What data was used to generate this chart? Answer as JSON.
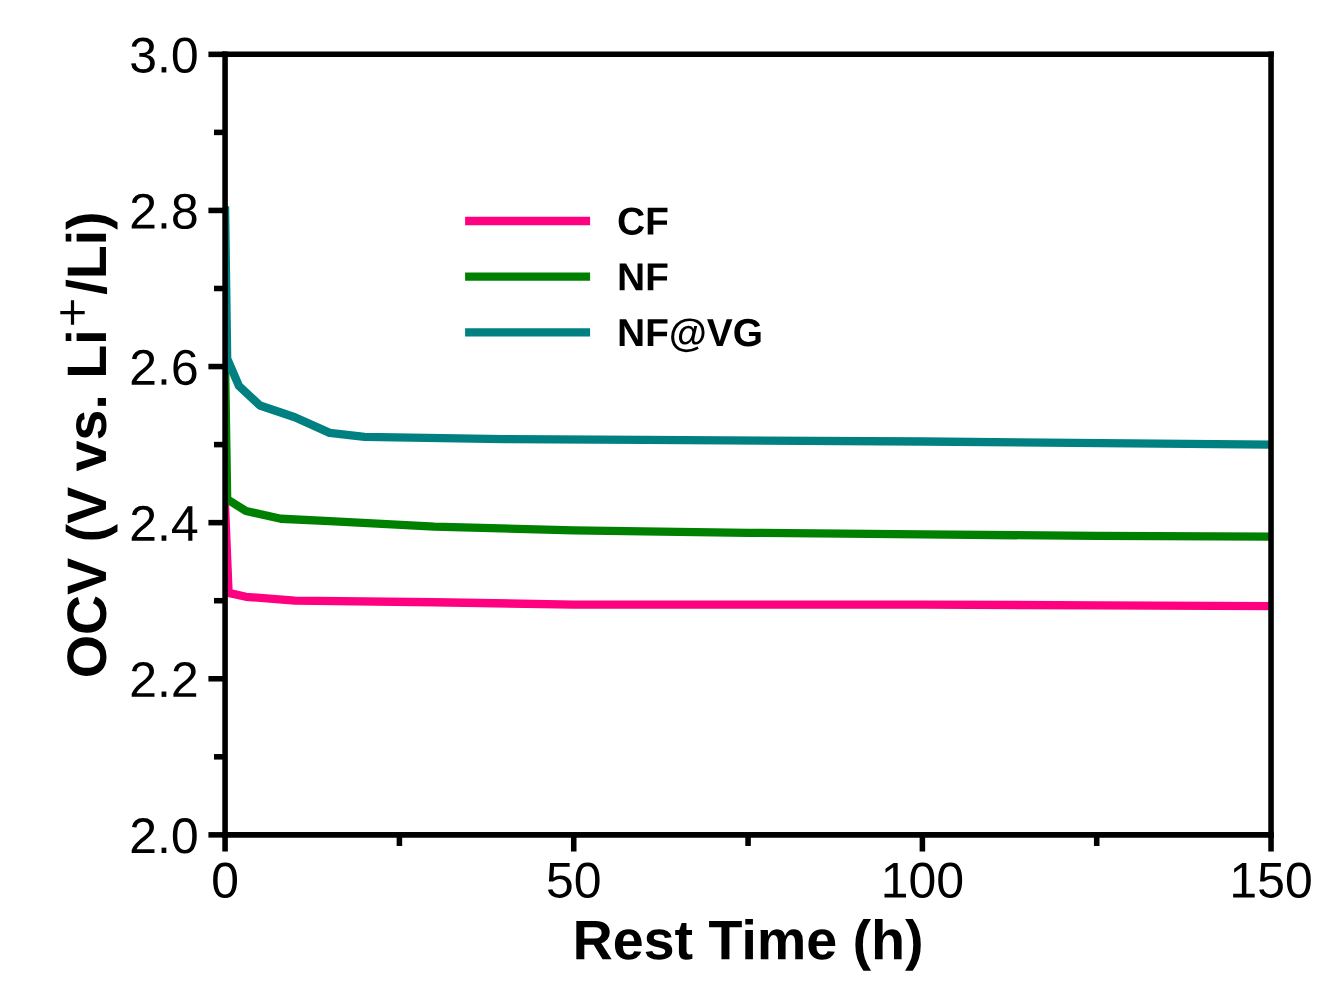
{
  "chart_data": {
    "type": "line",
    "xlabel": "Rest Time (h)",
    "ylabel": "OCV (V vs. Li$^{+}$/Li)",
    "xlim": [
      0,
      150
    ],
    "xticks": [
      0,
      50,
      100,
      150
    ],
    "ylim": [
      2.0,
      3.0
    ],
    "yticks": [
      {
        "value": 2.0,
        "label": "2.0"
      },
      {
        "value": 2.2,
        "label": "2.2"
      },
      {
        "value": 2.4,
        "label": "2.4"
      },
      {
        "value": 2.6,
        "label": "2.6"
      },
      {
        "value": 2.8,
        "label": "2.8"
      },
      {
        "value": 3.0,
        "label": "3.0"
      }
    ],
    "legend": "top left",
    "grid": false,
    "marker": "none",
    "line_style": "solid",
    "series": [
      {
        "name": "CF",
        "color": "#ff0080",
        "x": [
          0,
          0.5,
          3,
          10,
          30,
          50,
          75,
          100,
          125,
          150
        ],
        "values": [
          2.42,
          2.31,
          2.305,
          2.3,
          2.298,
          2.295,
          2.295,
          2.295,
          2.294,
          2.293
        ]
      },
      {
        "name": "NF",
        "color": "#008000",
        "x": [
          0,
          0.3,
          3,
          8,
          15,
          30,
          50,
          75,
          100,
          125,
          150
        ],
        "values": [
          2.6,
          2.43,
          2.415,
          2.405,
          2.402,
          2.395,
          2.39,
          2.387,
          2.385,
          2.383,
          2.382
        ]
      },
      {
        "name": "NF@VG",
        "color": "#008080",
        "x": [
          0,
          0.3,
          2,
          5,
          10,
          15,
          20,
          40,
          60,
          100,
          150
        ],
        "values": [
          2.8,
          2.61,
          2.575,
          2.55,
          2.535,
          2.515,
          2.51,
          2.507,
          2.506,
          2.504,
          2.5
        ]
      }
    ]
  }
}
